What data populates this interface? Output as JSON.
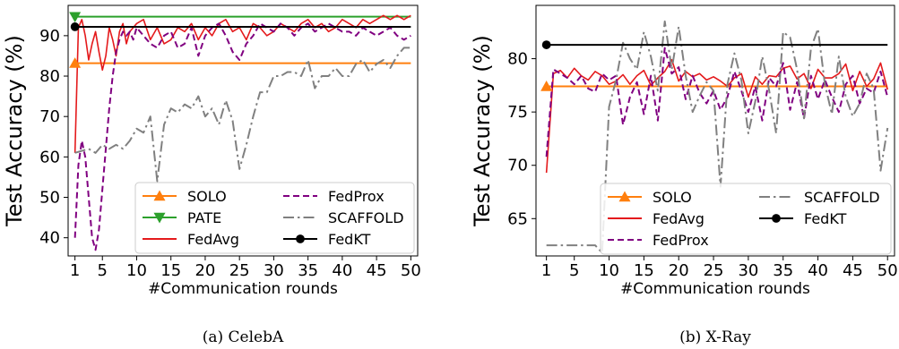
{
  "chart_data": [
    {
      "type": "line",
      "caption": "(a) CelebA",
      "xlabel": "#Communication rounds",
      "ylabel": "Test Accuracy (%)",
      "xlim": [
        0,
        51
      ],
      "ylim": [
        35.5,
        97.5
      ],
      "xticks": [
        1,
        5,
        10,
        15,
        20,
        25,
        30,
        35,
        40,
        45,
        50
      ],
      "yticks": [
        40,
        50,
        60,
        70,
        80,
        90
      ],
      "legend_columns": 2,
      "legend_placement": "lower-right",
      "series": [
        {
          "name": "SOLO",
          "color": "#ff7f0e",
          "dash": "solid",
          "marker": "triangle-up",
          "x": [
            1,
            50
          ],
          "y": [
            83.2,
            83.2
          ]
        },
        {
          "name": "PATE",
          "color": "#2ca02c",
          "dash": "solid",
          "marker": "triangle-down",
          "x": [
            1,
            50
          ],
          "y": [
            94.7,
            94.7
          ]
        },
        {
          "name": "FedAvg",
          "color": "#e41a1c",
          "dash": "solid",
          "x": [
            1,
            1.5,
            2,
            2.5,
            3,
            3.5,
            4,
            4.5,
            5,
            5.5,
            6,
            6.5,
            7,
            7.5,
            8,
            8.5,
            9,
            9.5,
            10,
            11,
            12,
            13,
            14,
            15,
            16,
            17,
            18,
            19,
            20,
            21,
            22,
            23,
            24,
            25,
            26,
            27,
            28,
            29,
            30,
            31,
            32,
            33,
            34,
            35,
            36,
            37,
            38,
            39,
            40,
            41,
            42,
            43,
            44,
            45,
            46,
            47,
            48,
            49,
            50
          ],
          "y": [
            61,
            92,
            94,
            90,
            84,
            88,
            91,
            86,
            81.5,
            85,
            92,
            89,
            85,
            91,
            93,
            88,
            91,
            92,
            93,
            94,
            89,
            92,
            88,
            89,
            92,
            91,
            93,
            89,
            92,
            90,
            93,
            94,
            91,
            92,
            89,
            93,
            92,
            90,
            91,
            93,
            92,
            91,
            93,
            94,
            92,
            93,
            91,
            92,
            94,
            93,
            92,
            94,
            93,
            94,
            95,
            94,
            95,
            94,
            95
          ]
        },
        {
          "name": "FedProx",
          "color": "#800080",
          "dash": "dashed",
          "x": [
            1,
            1.5,
            2,
            2.5,
            3,
            3.5,
            4,
            4.5,
            5,
            5.5,
            6,
            6.5,
            7,
            7.5,
            8,
            8.5,
            9,
            9.5,
            10,
            11,
            12,
            13,
            14,
            15,
            16,
            17,
            18,
            19,
            20,
            21,
            22,
            23,
            24,
            25,
            26,
            27,
            28,
            29,
            30,
            31,
            32,
            33,
            34,
            35,
            36,
            37,
            38,
            39,
            40,
            41,
            42,
            43,
            44,
            45,
            46,
            47,
            48,
            49,
            50
          ],
          "y": [
            40,
            58,
            64,
            60,
            50,
            40,
            37,
            42,
            52,
            62,
            72,
            80,
            86,
            89,
            91,
            90,
            91,
            89,
            92,
            90,
            88,
            87,
            90,
            91,
            87,
            88,
            92,
            85,
            90,
            92,
            93,
            90,
            86,
            84,
            88,
            90,
            93,
            92,
            91,
            93,
            92,
            90,
            92,
            93,
            91,
            92,
            93,
            92,
            91,
            91,
            90,
            92,
            91,
            90,
            91,
            92,
            90,
            89,
            90
          ]
        },
        {
          "name": "SCAFFOLD",
          "color": "#808080",
          "dash": "dashdot",
          "x": [
            1,
            2,
            3,
            4,
            5,
            6,
            7,
            8,
            9,
            10,
            11,
            12,
            13,
            14,
            15,
            16,
            17,
            18,
            19,
            20,
            21,
            22,
            23,
            24,
            25,
            26,
            27,
            28,
            29,
            30,
            31,
            32,
            33,
            34,
            35,
            36,
            37,
            38,
            39,
            40,
            41,
            42,
            43,
            44,
            45,
            46,
            47,
            48,
            49,
            50
          ],
          "y": [
            61,
            61.5,
            62,
            61,
            63,
            62,
            63,
            62,
            64,
            67,
            66,
            70,
            54,
            68,
            72,
            71,
            73,
            72,
            75,
            70,
            72,
            68,
            74,
            69,
            57,
            63,
            70,
            76,
            76,
            80,
            80,
            81,
            81,
            80,
            84,
            77,
            80,
            80,
            82,
            80,
            80,
            83,
            84,
            81,
            83,
            84,
            82,
            85,
            87,
            87
          ]
        },
        {
          "name": "FedKT",
          "color": "#000000",
          "dash": "solid",
          "marker": "circle",
          "x": [
            1,
            50
          ],
          "y": [
            92.2,
            92.2
          ]
        }
      ]
    },
    {
      "type": "line",
      "caption": "(b) X-Ray",
      "xlabel": "#Communication rounds",
      "ylabel": "Test Accuracy (%)",
      "xlim": [
        -0.5,
        51
      ],
      "ylim": [
        61.5,
        85.0
      ],
      "xticks": [
        1,
        5,
        10,
        15,
        20,
        25,
        30,
        35,
        40,
        45,
        50
      ],
      "yticks": [
        65,
        70,
        75,
        80
      ],
      "legend_columns": 2,
      "legend_placement": "lower-right",
      "series": [
        {
          "name": "SOLO",
          "color": "#ff7f0e",
          "dash": "solid",
          "marker": "triangle-up",
          "x": [
            1,
            50
          ],
          "y": [
            77.4,
            77.4
          ]
        },
        {
          "name": "FedAvg",
          "color": "#e41a1c",
          "dash": "solid",
          "x": [
            1,
            2,
            3,
            4,
            5,
            6,
            7,
            8,
            9,
            10,
            11,
            12,
            13,
            14,
            15,
            16,
            17,
            18,
            19,
            20,
            21,
            22,
            23,
            24,
            25,
            26,
            27,
            28,
            29,
            30,
            31,
            32,
            33,
            34,
            35,
            36,
            37,
            38,
            39,
            40,
            41,
            42,
            43,
            44,
            45,
            46,
            47,
            48,
            49,
            50
          ],
          "y": [
            69.3,
            78.6,
            78.9,
            78.2,
            79.1,
            78.4,
            78.0,
            78.8,
            78.4,
            77.6,
            77.9,
            78.5,
            77.6,
            78.4,
            78.9,
            77.5,
            78.2,
            78.8,
            79.9,
            77.9,
            78.8,
            78.3,
            78.6,
            78.0,
            78.3,
            77.9,
            77.4,
            78.2,
            78.6,
            76.4,
            78.3,
            77.6,
            78.4,
            78.3,
            79.1,
            79.3,
            78.1,
            78.6,
            77.2,
            79.0,
            78.2,
            78.2,
            78.6,
            79.5,
            77.0,
            78.8,
            77.4,
            78.1,
            79.6,
            77.1
          ]
        },
        {
          "name": "FedProx",
          "color": "#800080",
          "dash": "dashed",
          "x": [
            1,
            2,
            3,
            4,
            5,
            6,
            7,
            8,
            9,
            10,
            11,
            12,
            13,
            14,
            15,
            16,
            17,
            18,
            19,
            20,
            21,
            22,
            23,
            24,
            25,
            26,
            27,
            28,
            29,
            30,
            31,
            32,
            33,
            34,
            35,
            36,
            37,
            38,
            39,
            40,
            41,
            42,
            43,
            44,
            45,
            46,
            47,
            48,
            49,
            50
          ],
          "y": [
            70.8,
            79.0,
            78.6,
            78.2,
            77.6,
            78.4,
            77.2,
            76.9,
            78.6,
            78.0,
            78.4,
            73.8,
            76.4,
            77.8,
            74.8,
            78.4,
            74.2,
            81.0,
            78.6,
            79.2,
            76.2,
            78.4,
            76.8,
            75.8,
            77.0,
            75.2,
            76.4,
            78.8,
            77.0,
            75.0,
            77.4,
            74.2,
            78.2,
            77.4,
            79.6,
            75.2,
            77.8,
            74.4,
            78.4,
            76.2,
            78.0,
            76.4,
            75.0,
            77.6,
            78.4,
            75.8,
            77.2,
            76.8,
            78.8,
            76.4
          ]
        },
        {
          "name": "SCAFFOLD",
          "color": "#808080",
          "dash": "dashdot",
          "x": [
            1,
            2,
            3,
            4,
            5,
            6,
            7,
            8,
            9,
            10,
            11,
            12,
            13,
            14,
            15,
            16,
            17,
            18,
            19,
            20,
            21,
            22,
            23,
            24,
            25,
            26,
            27,
            28,
            29,
            30,
            31,
            32,
            33,
            34,
            35,
            36,
            37,
            38,
            39,
            40,
            41,
            42,
            43,
            44,
            45,
            46,
            47,
            48,
            49,
            50
          ],
          "y": [
            62.5,
            62.5,
            62.5,
            62.5,
            62.5,
            62.5,
            62.5,
            62.5,
            61.8,
            75.5,
            78.0,
            81.5,
            80.0,
            79.0,
            82.5,
            80.2,
            77.0,
            83.5,
            79.0,
            83.0,
            78.4,
            75.0,
            76.5,
            77.8,
            77.0,
            68.0,
            77.6,
            80.5,
            78.0,
            73.0,
            76.0,
            80.2,
            77.0,
            73.0,
            82.5,
            82.0,
            79.0,
            74.4,
            81.0,
            82.8,
            77.6,
            74.8,
            80.2,
            76.4,
            74.6,
            75.8,
            78.6,
            77.2,
            69.5,
            73.5
          ]
        },
        {
          "name": "FedKT",
          "color": "#000000",
          "dash": "solid",
          "marker": "circle",
          "x": [
            1,
            50
          ],
          "y": [
            81.3,
            81.3
          ]
        }
      ]
    }
  ]
}
